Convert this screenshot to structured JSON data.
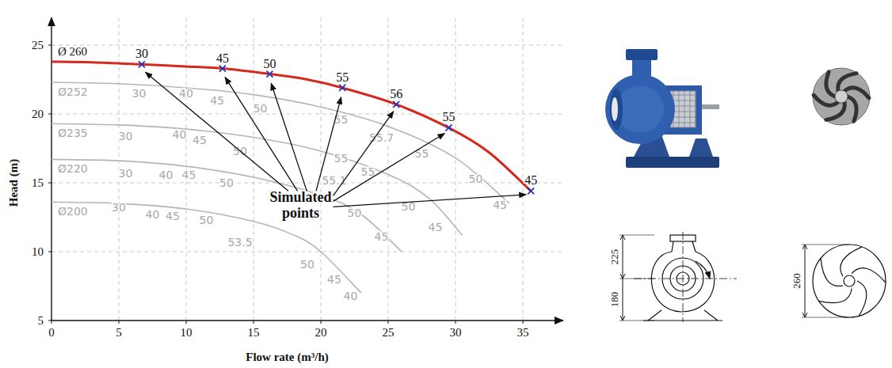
{
  "chart_data": {
    "type": "line",
    "x_label": "Flow rate (m³/h)",
    "y_label": "Head (m)",
    "xlim": [
      0,
      38
    ],
    "ylim": [
      5,
      27
    ],
    "xticks": [
      0,
      5,
      10,
      15,
      20,
      25,
      30,
      35
    ],
    "yticks": [
      5,
      10,
      15,
      20,
      25
    ],
    "grid": true,
    "annotation": "Simulated points",
    "series": [
      {
        "name": "Ø 260",
        "color": "#d42a1e",
        "line_style": "solid",
        "marker": "x",
        "x": [
          0,
          3,
          6.7,
          10,
          12.7,
          16.2,
          19,
          21.6,
          25.6,
          29.5,
          32.5,
          35.6
        ],
        "values": [
          23.8,
          23.75,
          23.6,
          23.45,
          23.3,
          22.9,
          22.5,
          21.9,
          20.7,
          19.0,
          17.2,
          14.4
        ],
        "simulated_points": {
          "x": [
            6.7,
            12.7,
            16.2,
            21.6,
            25.6,
            29.5,
            35.6
          ],
          "y": [
            23.6,
            23.3,
            22.9,
            21.9,
            20.7,
            19.0,
            14.4
          ],
          "efficiency": [
            30,
            45,
            50,
            55,
            56,
            55,
            45
          ]
        }
      },
      {
        "name": "Ø252",
        "color": "#b5b5b5",
        "line_style": "solid",
        "x": [
          0,
          5,
          10,
          15,
          20,
          25,
          30,
          34
        ],
        "values": [
          22.3,
          22.2,
          21.9,
          21.4,
          20.5,
          19.1,
          16.8,
          13.5
        ],
        "efficiency_labels": {
          "x": [
            6.5,
            10,
            12.3,
            15.5,
            21.5,
            24.5,
            27.5,
            31.5,
            33.3
          ],
          "y": [
            21.5,
            21.5,
            21.0,
            20.4,
            19.6,
            18.3,
            17.1,
            15.3,
            13.4
          ],
          "efficiency": [
            30,
            40,
            45,
            50,
            55,
            55.7,
            55,
            50,
            45
          ]
        }
      },
      {
        "name": "Ø235",
        "color": "#b5b5b5",
        "line_style": "solid",
        "x": [
          0,
          5,
          10,
          15,
          20,
          25,
          28,
          30.5
        ],
        "values": [
          19.3,
          19.2,
          18.9,
          18.3,
          17.3,
          15.6,
          13.9,
          11.2
        ],
        "efficiency_labels": {
          "x": [
            5.5,
            9.5,
            11,
            14,
            21.5,
            23.5,
            26.5,
            28.5
          ],
          "y": [
            18.4,
            18.5,
            18.1,
            17.3,
            16.8,
            15.8,
            13.3,
            11.8
          ],
          "efficiency": [
            30,
            40,
            45,
            50,
            55,
            55,
            50,
            45
          ]
        }
      },
      {
        "name": "Ø220",
        "color": "#b5b5b5",
        "line_style": "solid",
        "x": [
          0,
          5,
          10,
          15,
          20,
          23,
          26
        ],
        "values": [
          16.7,
          16.6,
          16.2,
          15.4,
          14.1,
          12.7,
          10.0
        ],
        "efficiency_labels": {
          "x": [
            5.5,
            8.5,
            10.2,
            13,
            21,
            22.5,
            24.5
          ],
          "y": [
            15.7,
            15.6,
            15.6,
            15.0,
            15.2,
            12.8,
            11.1
          ],
          "efficiency": [
            30,
            40,
            45,
            50,
            55.1,
            50,
            45
          ]
        }
      },
      {
        "name": "Ø200",
        "color": "#b5b5b5",
        "line_style": "solid",
        "x": [
          0,
          5,
          10,
          15,
          18,
          20,
          23
        ],
        "values": [
          13.6,
          13.5,
          13.1,
          12.2,
          11.2,
          10.0,
          7.0
        ],
        "efficiency_labels": {
          "x": [
            5,
            7.5,
            9,
            11.5,
            14,
            19,
            21,
            22.2
          ],
          "y": [
            13.2,
            12.7,
            12.6,
            12.3,
            10.7,
            9.1,
            8.0,
            6.8
          ],
          "efficiency": [
            30,
            40,
            45,
            50,
            53.5,
            50,
            45,
            40
          ]
        }
      }
    ]
  },
  "drawings": {
    "casing": {
      "dims": [
        225,
        180
      ]
    },
    "impeller": {
      "dims": [
        260
      ]
    }
  }
}
